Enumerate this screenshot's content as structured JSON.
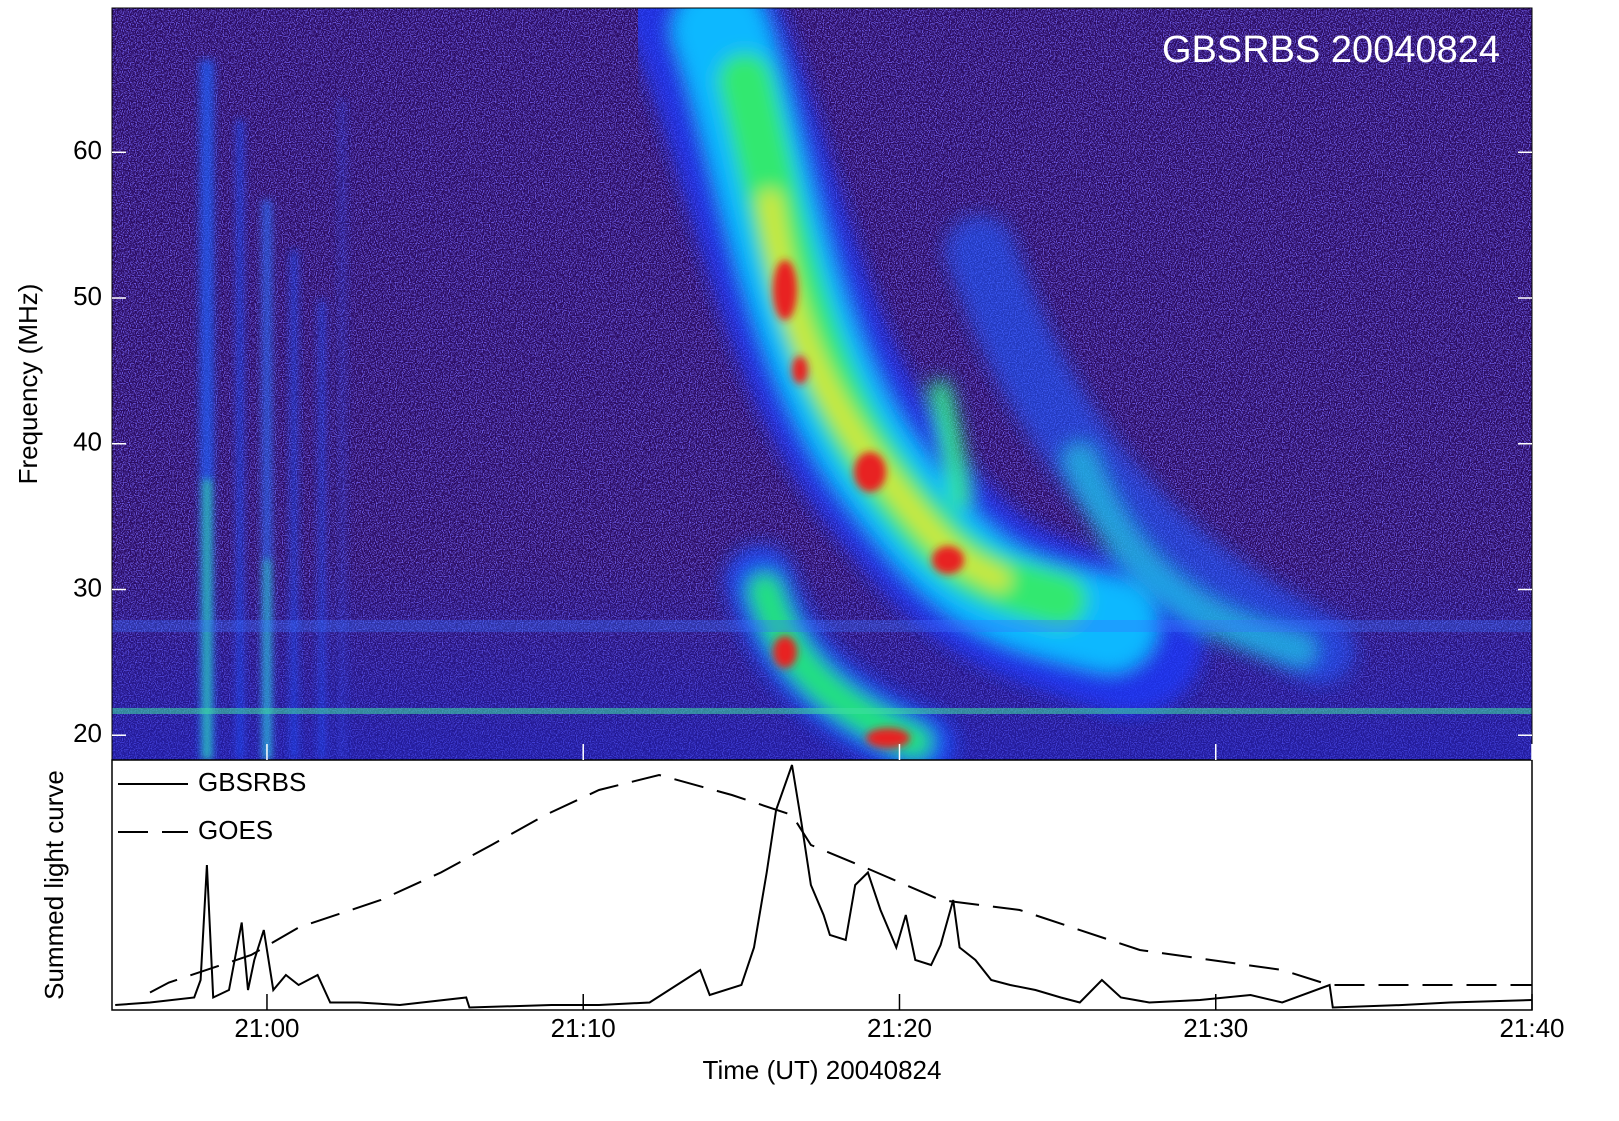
{
  "chart_data": [
    {
      "type": "spectrogram",
      "annotation": "GBSRBS 20040824",
      "ylabel": "Frequency (MHz)",
      "ylim": [
        18.3,
        69.9
      ],
      "yticks": [
        20,
        30,
        40,
        50,
        60
      ]
    },
    {
      "type": "line",
      "ylabel": "Summed light curve",
      "xlabel": "Time (UT) 20040824",
      "xlim": [
        55.1,
        100
      ],
      "xticks": [
        {
          "value": 60,
          "label": "21:00"
        },
        {
          "value": 70,
          "label": "21:10"
        },
        {
          "value": 80,
          "label": "21:20"
        },
        {
          "value": 90,
          "label": "21:30"
        },
        {
          "value": 100,
          "label": "21:40"
        }
      ],
      "ylim": [
        0,
        100
      ],
      "legend": "upper left",
      "series": [
        {
          "name": "GBSRBS",
          "color": "#000000",
          "line_style": "solid",
          "x": [
            55.2,
            56.3,
            57.7,
            57.9,
            58.1,
            58.3,
            58.8,
            59.2,
            59.4,
            59.6,
            59.9,
            60.2,
            60.6,
            61.0,
            61.6,
            62.0,
            62.9,
            64.2,
            66.3,
            66.4,
            69.0,
            70.5,
            72.1,
            73.7,
            74.0,
            75.0,
            75.4,
            75.8,
            76.1,
            76.6,
            76.9,
            77.2,
            77.6,
            77.8,
            78.3,
            78.6,
            79.0,
            79.4,
            79.9,
            80.2,
            80.5,
            81.0,
            81.3,
            81.7,
            81.9,
            82.4,
            82.9,
            83.5,
            84.3,
            85.1,
            85.7,
            86.4,
            87.0,
            87.9,
            89.5,
            91.1,
            92.1,
            93.6,
            93.7,
            95.9,
            97.4,
            100
          ],
          "values": [
            2,
            3,
            5,
            12,
            58,
            5,
            8,
            35,
            8,
            20,
            32,
            8,
            14,
            10,
            14,
            3,
            3,
            2,
            5,
            1,
            2,
            2,
            3,
            16,
            6,
            10,
            25,
            55,
            80,
            98,
            75,
            50,
            38,
            30,
            28,
            50,
            55,
            40,
            25,
            38,
            20,
            18,
            26,
            44,
            25,
            20,
            12,
            10,
            8,
            5,
            3,
            12,
            5,
            3,
            4,
            6,
            3,
            10,
            1,
            2,
            3,
            4
          ]
        },
        {
          "name": "GOES",
          "color": "#000000",
          "line_style": "dashed",
          "x": [
            56.3,
            56.9,
            59.5,
            61.0,
            63.6,
            65.5,
            67.1,
            68.8,
            70.5,
            72.4,
            74.7,
            76.6,
            77.2,
            79.1,
            81.3,
            83.8,
            87.6,
            92.1,
            93.6,
            100
          ],
          "values": [
            7,
            11,
            22,
            33,
            44,
            55,
            66,
            78,
            88,
            94,
            86,
            78,
            66,
            56,
            44,
            40,
            24,
            16,
            10,
            10
          ]
        }
      ]
    }
  ]
}
